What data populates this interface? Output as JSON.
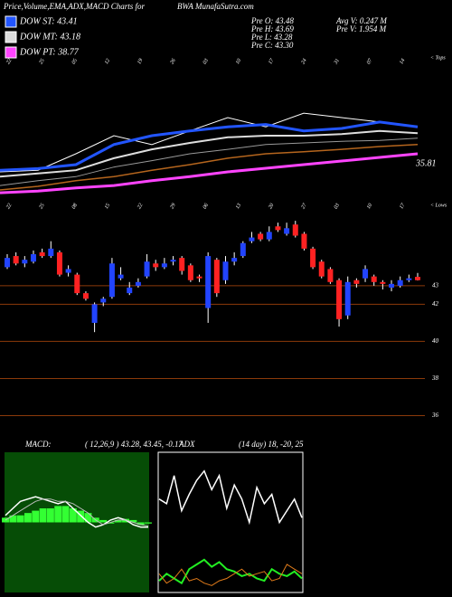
{
  "header": {
    "title": "Price,Volume,EMA,ADX,MACD Charts for",
    "site": "BWA MunafaSutra.com",
    "legend": [
      {
        "label": "DOW ST: 43.41",
        "color": "#2255ff"
      },
      {
        "label": "DOW MT: 43.18",
        "color": "#dddddd"
      },
      {
        "label": "DOW PT: 38.77",
        "color": "#ff44ff"
      }
    ],
    "pre": [
      "Pre  O: 43.48",
      "Pre  H: 43.69",
      "Pre  L: 43.28",
      "Pre  C: 43.30"
    ],
    "volume": [
      "Avg V: 0.247 M",
      "Pre  V: 1.954 M"
    ]
  },
  "chart_data": [
    {
      "type": "line",
      "ylim": [
        30,
        48
      ],
      "annotations": [
        "35.81",
        "< Tops",
        "< Lows"
      ],
      "date_labels_top": [
        "22",
        "25",
        "05",
        "12",
        "19",
        "26",
        "03",
        "10",
        "17",
        "24",
        "31",
        "07",
        "14"
      ],
      "date_labels_bottom": [
        "22",
        "25",
        "08",
        "15",
        "22",
        "29",
        "06",
        "13",
        "20",
        "27",
        "03",
        "10",
        "17"
      ],
      "series": [
        {
          "color": "#ffffff",
          "width": 1,
          "values": [
            33.6,
            33.8,
            35.85,
            38.1,
            37.0,
            38.7,
            40.35,
            39.2,
            40.9,
            40.35,
            39.8,
            39.2
          ]
        },
        {
          "color": "#2255ff",
          "width": 3,
          "values": [
            33.8,
            34.0,
            34.5,
            37.0,
            38.1,
            38.7,
            39.2,
            39.5,
            38.7,
            39.0,
            39.8,
            39.2
          ]
        },
        {
          "color": "#dddddd",
          "width": 2,
          "values": [
            33.0,
            33.4,
            33.8,
            35.3,
            36.4,
            37.2,
            37.9,
            38.1,
            38.1,
            38.3,
            38.7,
            38.4
          ]
        },
        {
          "color": "#999999",
          "width": 1,
          "values": [
            31.9,
            32.5,
            33.0,
            34.2,
            35.0,
            35.85,
            36.4,
            37.0,
            37.2,
            37.4,
            37.5,
            37.8
          ]
        },
        {
          "color": "#b5651d",
          "width": 1.5,
          "values": [
            31.35,
            31.8,
            32.5,
            33.0,
            33.8,
            34.5,
            35.3,
            35.85,
            36.1,
            36.4,
            36.75,
            37.0
          ]
        },
        {
          "color": "#ff44ff",
          "width": 3,
          "values": [
            31.0,
            31.2,
            31.6,
            31.9,
            32.5,
            33.0,
            33.6,
            34.05,
            34.5,
            34.95,
            35.4,
            35.85
          ]
        }
      ]
    },
    {
      "type": "candlestick",
      "ylim": [
        35,
        46.7
      ],
      "yticks": [
        36,
        38,
        40,
        42,
        43
      ],
      "up_color": "#2244ff",
      "down_color": "#ff2222",
      "grid_color": "#8b3a0a",
      "open": [
        44.0,
        44.6,
        44.2,
        44.3,
        44.8,
        44.6,
        44.8,
        43.7,
        43.6,
        42.6,
        41.0,
        42.1,
        42.4,
        43.4,
        42.6,
        43.0,
        43.5,
        44.2,
        44.0,
        44.3,
        44.5,
        44.1,
        43.5,
        41.8,
        44.4,
        43.3,
        44.3,
        44.6,
        45.4,
        45.8,
        45.5,
        46.2,
        45.8,
        46.3,
        45.8,
        45.0,
        44.3,
        43.9,
        43.3,
        41.4,
        43.3,
        43.4,
        43.5,
        43.2,
        42.9,
        43.0,
        43.3,
        43.48
      ],
      "high": [
        44.7,
        44.8,
        44.6,
        44.9,
        45.0,
        45.4,
        44.9,
        44.1,
        43.7,
        42.7,
        42.1,
        42.4,
        44.5,
        44.0,
        43.2,
        43.4,
        44.7,
        44.4,
        44.5,
        44.6,
        44.6,
        44.2,
        43.6,
        44.8,
        44.5,
        44.6,
        44.8,
        45.4,
        45.9,
        45.9,
        46.2,
        46.4,
        46.4,
        46.5,
        45.9,
        45.1,
        44.4,
        44.0,
        43.4,
        43.5,
        43.4,
        44.1,
        43.6,
        43.3,
        43.3,
        43.5,
        43.6,
        43.69
      ],
      "low": [
        43.9,
        44.1,
        44.0,
        44.2,
        44.5,
        44.5,
        43.5,
        43.5,
        42.5,
        42.2,
        40.5,
        41.9,
        42.3,
        43.3,
        42.5,
        42.9,
        43.4,
        43.8,
        43.9,
        44.1,
        43.6,
        43.2,
        43.2,
        41.0,
        42.4,
        43.1,
        44.1,
        44.5,
        45.3,
        45.4,
        45.4,
        45.9,
        45.7,
        45.6,
        44.9,
        43.9,
        43.4,
        43.1,
        40.8,
        41.2,
        42.9,
        43.2,
        43.0,
        42.8,
        42.7,
        42.9,
        43.2,
        43.28
      ],
      "close": [
        44.5,
        44.2,
        44.4,
        44.7,
        44.6,
        45.0,
        43.6,
        43.9,
        42.6,
        42.3,
        42.0,
        42.3,
        44.2,
        43.6,
        42.9,
        43.2,
        44.3,
        44.0,
        44.2,
        44.4,
        43.8,
        43.3,
        43.4,
        44.6,
        42.6,
        44.3,
        44.5,
        45.3,
        45.6,
        45.5,
        45.9,
        46.0,
        46.1,
        45.7,
        45.0,
        44.0,
        43.5,
        43.2,
        41.2,
        43.2,
        43.1,
        43.9,
        43.2,
        43.1,
        43.1,
        43.3,
        43.4,
        43.3
      ]
    },
    {
      "type": "macd",
      "label": "MACD:",
      "params": "( 12,26,9 ) 43.28, 43.45, -0.17",
      "ylim": [
        -3,
        3
      ],
      "background": "#064d06",
      "histogram": {
        "color": "#33ff33",
        "values": [
          0.2,
          0.3,
          0.3,
          0.4,
          0.5,
          0.6,
          0.6,
          0.7,
          0.7,
          0.6,
          0.5,
          0.4,
          0.2,
          0.1,
          -0.05,
          0.1,
          0.15,
          0.1,
          -0.1,
          -0.05
        ]
      },
      "series": [
        {
          "color": "#ffffff",
          "width": 1.5,
          "values": [
            0.3,
            0.6,
            0.9,
            1.0,
            1.1,
            1.0,
            0.9,
            0.8,
            0.9,
            0.6,
            0.3,
            0.0,
            -0.2,
            -0.1,
            0.1,
            0.2,
            0.1,
            -0.1,
            -0.2,
            -0.2
          ]
        },
        {
          "color": "#bbbbbb",
          "width": 1,
          "values": [
            0.1,
            0.3,
            0.5,
            0.7,
            0.9,
            1.0,
            1.0,
            0.9,
            0.9,
            0.8,
            0.6,
            0.4,
            0.1,
            -0.1,
            0.0,
            0.1,
            0.1,
            0.0,
            -0.1,
            -0.15
          ]
        }
      ]
    },
    {
      "type": "line",
      "label": "ADX",
      "params": "(14 day) 18, -20, 25",
      "ylim": [
        0,
        60
      ],
      "border": true,
      "series": [
        {
          "color": "#ffffff",
          "width": 1.5,
          "values": [
            40,
            38,
            50,
            35,
            42,
            48,
            52,
            44,
            50,
            36,
            46,
            40,
            30,
            45,
            38,
            42,
            30,
            35,
            40,
            32
          ]
        },
        {
          "color": "#22ee22",
          "width": 2,
          "values": [
            5,
            8,
            6,
            4,
            10,
            12,
            14,
            11,
            13,
            10,
            9,
            7,
            8,
            6,
            5,
            10,
            8,
            7,
            9,
            6
          ]
        },
        {
          "color": "#e07b1a",
          "width": 1,
          "values": [
            8,
            4,
            6,
            10,
            5,
            6,
            4,
            3,
            5,
            6,
            8,
            10,
            7,
            8,
            9,
            5,
            6,
            12,
            10,
            8
          ]
        }
      ]
    }
  ]
}
